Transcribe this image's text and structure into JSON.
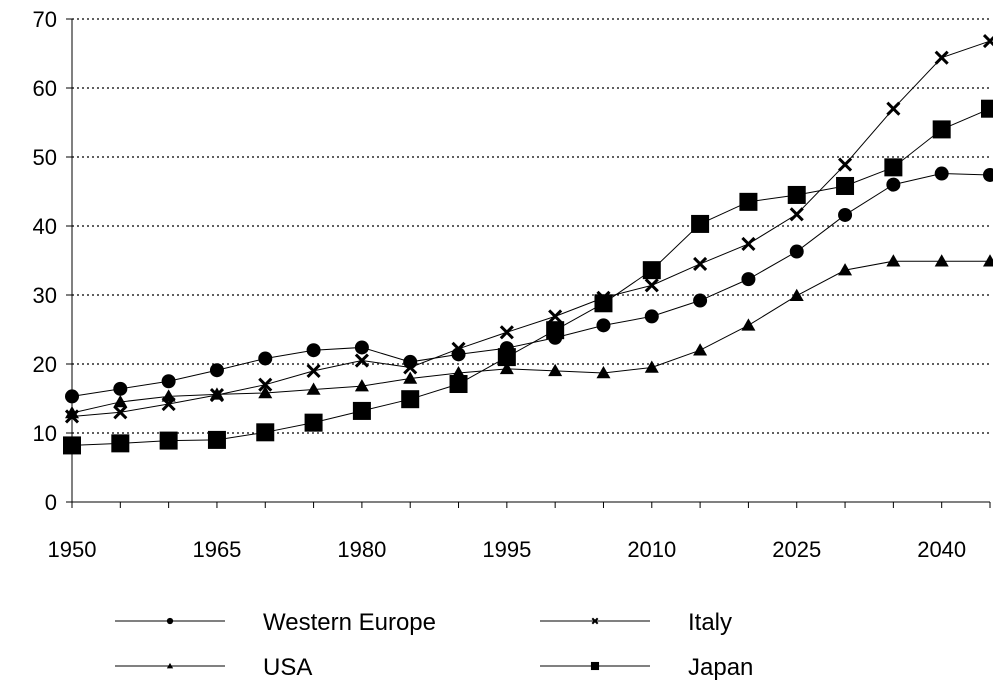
{
  "chart_data": {
    "type": "line",
    "title": "",
    "xlabel": "",
    "ylabel": "",
    "xlim": [
      1950,
      2045
    ],
    "ylim": [
      0,
      70
    ],
    "x_ticks": [
      1950,
      1965,
      1980,
      1995,
      2010,
      2025,
      2040
    ],
    "y_ticks": [
      0,
      10,
      20,
      30,
      40,
      50,
      60,
      70
    ],
    "grid": "horizontal-dotted",
    "legend_position": "bottom",
    "x": [
      1950,
      1955,
      1960,
      1965,
      1970,
      1975,
      1980,
      1985,
      1990,
      1995,
      2000,
      2005,
      2010,
      2015,
      2020,
      2025,
      2030,
      2035,
      2040,
      2045
    ],
    "series": [
      {
        "name": "Western Europe",
        "marker": "circle",
        "values": [
          15.3,
          16.4,
          17.5,
          19.1,
          20.8,
          22.0,
          22.4,
          20.3,
          21.4,
          22.3,
          23.8,
          25.6,
          26.9,
          29.2,
          32.3,
          36.3,
          41.6,
          46.0,
          47.6,
          47.4
        ]
      },
      {
        "name": "Italy",
        "marker": "x",
        "values": [
          12.4,
          13.0,
          14.2,
          15.5,
          17.0,
          19.0,
          20.5,
          19.5,
          22.2,
          24.6,
          26.9,
          29.6,
          31.4,
          34.5,
          37.4,
          41.7,
          48.9,
          57.0,
          64.4,
          66.8
        ]
      },
      {
        "name": "USA",
        "marker": "triangle",
        "values": [
          12.9,
          14.5,
          15.3,
          15.6,
          15.8,
          16.3,
          16.8,
          17.9,
          18.7,
          19.3,
          19.0,
          18.7,
          19.5,
          22.0,
          25.6,
          29.9,
          33.6,
          34.9,
          34.9,
          34.9
        ]
      },
      {
        "name": "Japan",
        "marker": "square",
        "values": [
          8.2,
          8.5,
          8.9,
          9.0,
          10.1,
          11.5,
          13.2,
          14.9,
          17.1,
          21.0,
          24.9,
          28.8,
          33.6,
          40.3,
          43.5,
          44.5,
          45.8,
          48.5,
          54.0,
          57.0
        ]
      }
    ]
  }
}
